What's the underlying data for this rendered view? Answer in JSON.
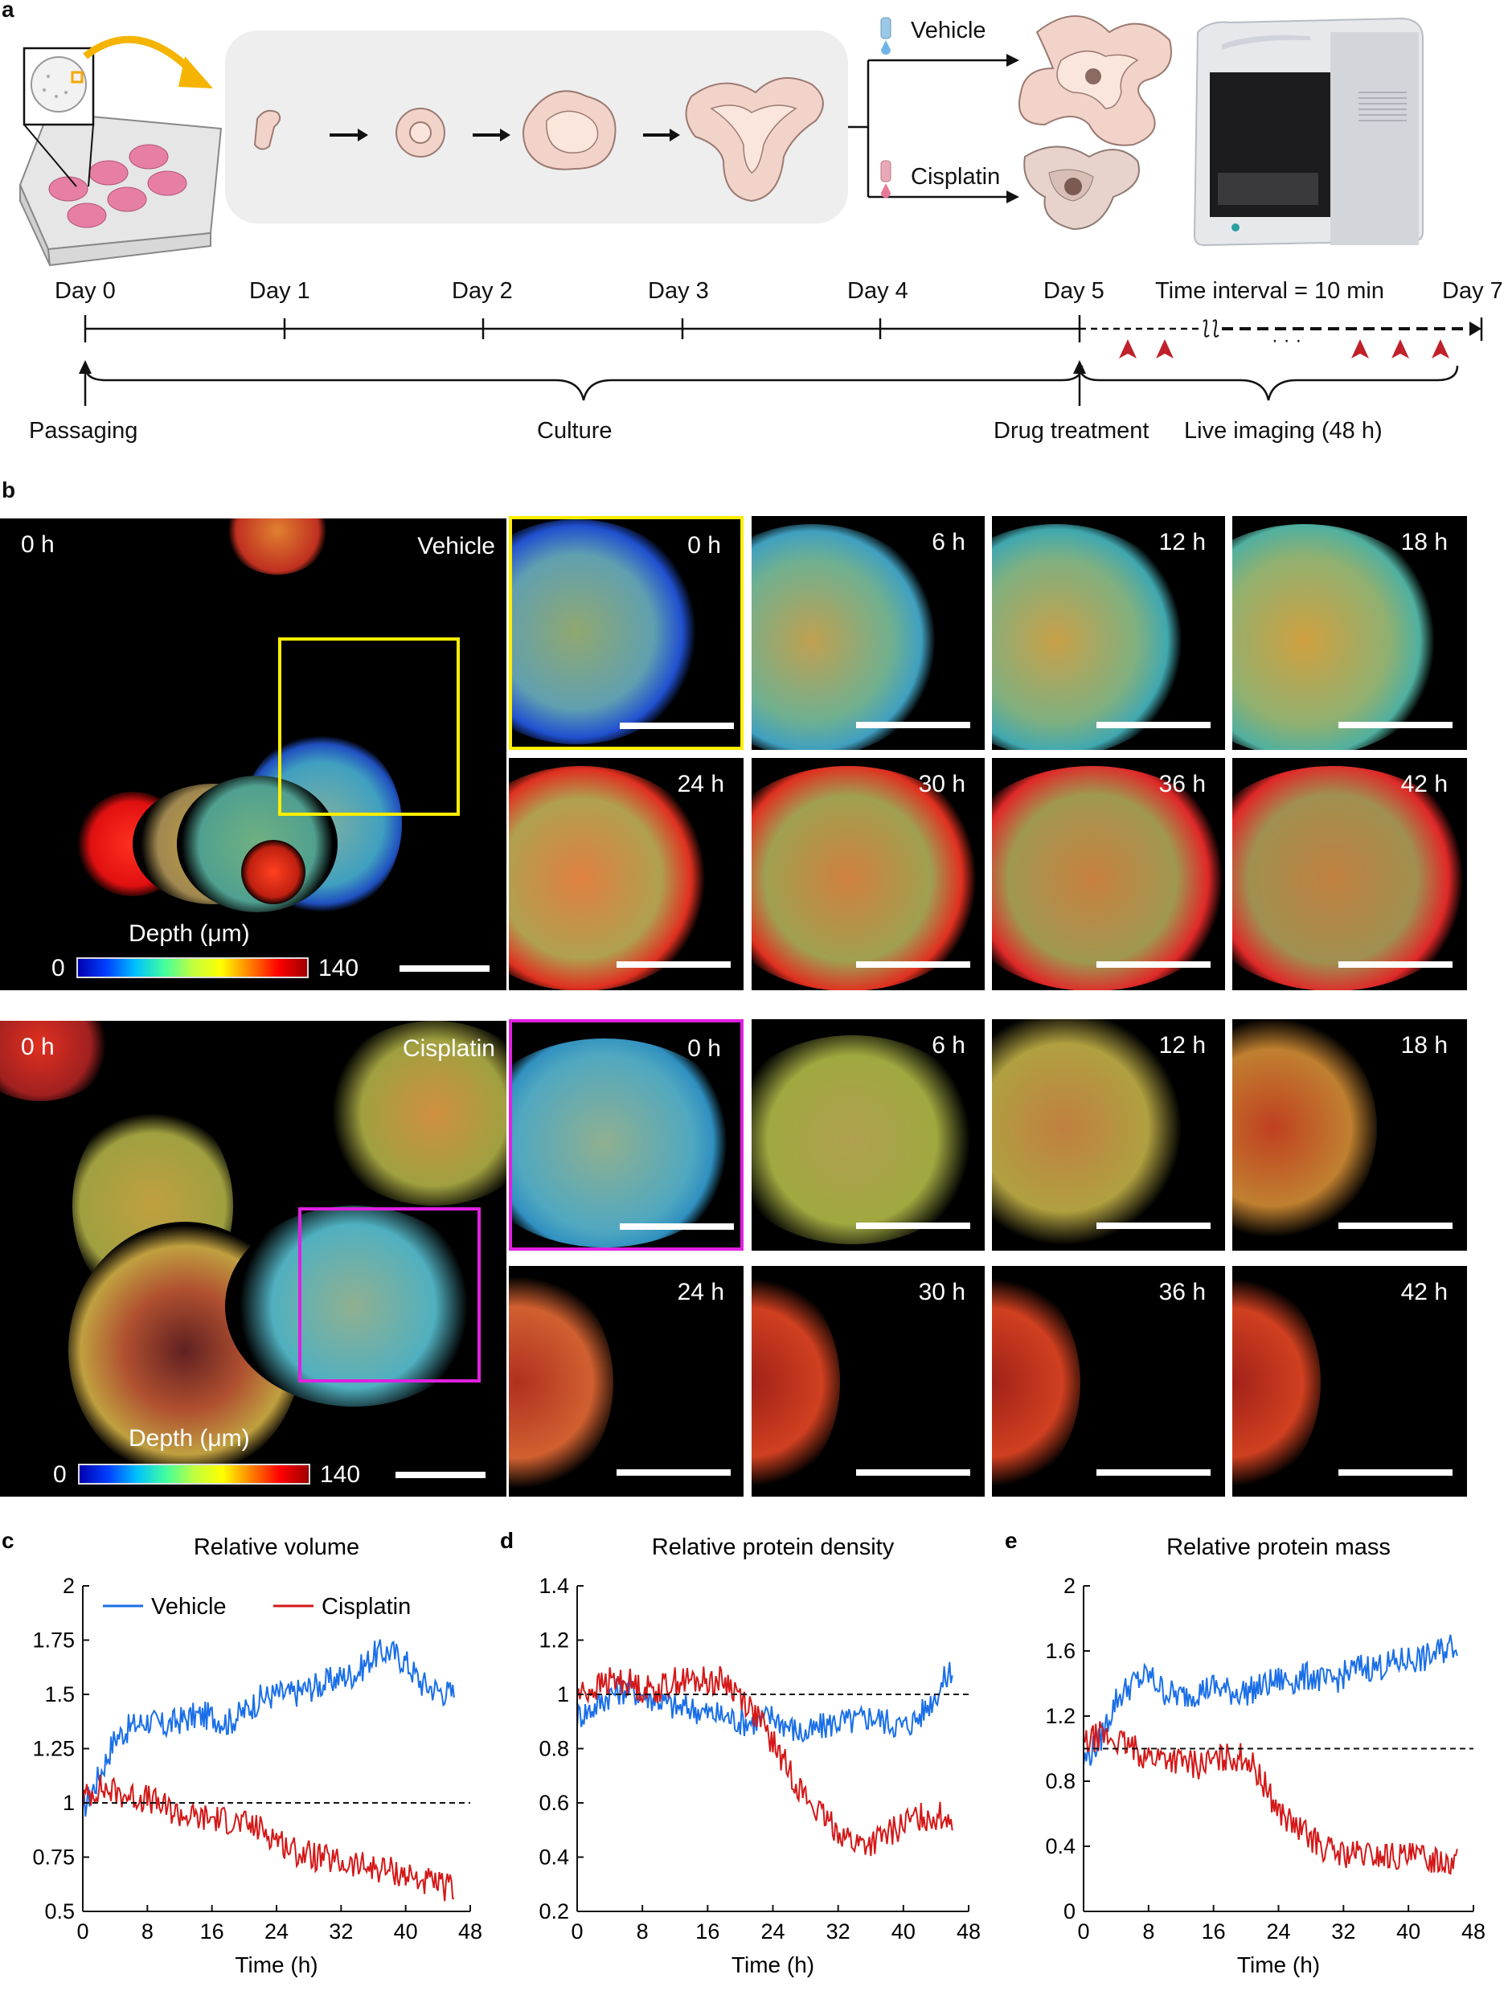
{
  "panel_a": {
    "letter": "a",
    "vehicle_label": "Vehicle",
    "cisplatin_label": "Cisplatin",
    "days": [
      "Day 0",
      "Day 1",
      "Day 2",
      "Day 3",
      "Day 4",
      "Day 5",
      "Day 7"
    ],
    "interval_label": "Time interval = 10 min",
    "ellipsis": "· · ·",
    "passaging_label": "Passaging",
    "culture_label": "Culture",
    "drug_label": "Drug treatment",
    "imaging_label": "Live imaging (48 h)"
  },
  "panel_b": {
    "letter": "b",
    "vehicle": {
      "overview_time": "0 h",
      "condition": "Vehicle",
      "depth_label": "Depth (μm)",
      "depth_min": "0",
      "depth_max": "140",
      "frames": [
        "0 h",
        "6 h",
        "12 h",
        "18 h",
        "24 h",
        "30 h",
        "36 h",
        "42 h"
      ]
    },
    "cisplatin": {
      "overview_time": "0 h",
      "condition": "Cisplatin",
      "depth_label": "Depth (μm)",
      "depth_min": "0",
      "depth_max": "140",
      "frames": [
        "0 h",
        "6 h",
        "12 h",
        "18 h",
        "24 h",
        "30 h",
        "36 h",
        "42 h"
      ]
    }
  },
  "colors": {
    "vehicle": "#1a6fe8",
    "cisplatin": "#d41818",
    "yellow_box": "#ffee00",
    "magenta_box": "#e020e0",
    "arrowhead": "#c0202a",
    "orange": "#f5b400"
  },
  "chart_data": [
    {
      "type": "line",
      "letter": "c",
      "title": "Relative volume",
      "xlabel": "Time (h)",
      "ylabel": "",
      "xlim": [
        0,
        48
      ],
      "ylim": [
        0.5,
        2
      ],
      "xticks": [
        0,
        8,
        16,
        24,
        32,
        40,
        48
      ],
      "yticks": [
        0.5,
        0.75,
        1,
        1.25,
        1.5,
        1.75,
        2
      ],
      "ytick_labels": [
        "0.5",
        "0.75",
        "1",
        "1.25",
        "1.5",
        "1.75",
        "2"
      ],
      "reference_line": 1,
      "legend": [
        "Vehicle",
        "Cisplatin"
      ],
      "series": [
        {
          "name": "Vehicle",
          "t": [
            0,
            2,
            4,
            6,
            8,
            10,
            12,
            14,
            16,
            18,
            20,
            22,
            24,
            26,
            28,
            30,
            32,
            34,
            36,
            38,
            40,
            42,
            44,
            46
          ],
          "values": [
            0.97,
            1.12,
            1.3,
            1.35,
            1.38,
            1.35,
            1.38,
            1.4,
            1.4,
            1.37,
            1.42,
            1.48,
            1.5,
            1.5,
            1.53,
            1.55,
            1.58,
            1.6,
            1.68,
            1.7,
            1.65,
            1.55,
            1.52,
            1.5
          ]
        },
        {
          "name": "Cisplatin",
          "t": [
            0,
            2,
            4,
            6,
            8,
            10,
            12,
            14,
            16,
            18,
            20,
            22,
            24,
            26,
            28,
            30,
            32,
            34,
            36,
            38,
            40,
            42,
            44,
            46
          ],
          "values": [
            1.02,
            1.07,
            1.05,
            1.03,
            1.02,
            0.98,
            0.95,
            0.93,
            0.93,
            0.92,
            0.9,
            0.88,
            0.84,
            0.78,
            0.76,
            0.74,
            0.72,
            0.71,
            0.7,
            0.69,
            0.67,
            0.64,
            0.62,
            0.6
          ]
        }
      ]
    },
    {
      "type": "line",
      "letter": "d",
      "title": "Relative protein density",
      "xlabel": "Time (h)",
      "ylabel": "",
      "xlim": [
        0,
        48
      ],
      "ylim": [
        0.2,
        1.4
      ],
      "xticks": [
        0,
        8,
        16,
        24,
        32,
        40,
        48
      ],
      "yticks": [
        0.2,
        0.4,
        0.6,
        0.8,
        1,
        1.2,
        1.4
      ],
      "ytick_labels": [
        "0.2",
        "0.4",
        "0.6",
        "0.8",
        "1",
        "1.2",
        "1.4"
      ],
      "reference_line": 1,
      "series": [
        {
          "name": "Vehicle",
          "t": [
            0,
            2,
            4,
            6,
            8,
            10,
            12,
            14,
            16,
            18,
            20,
            22,
            24,
            26,
            28,
            30,
            32,
            34,
            36,
            38,
            40,
            42,
            44,
            46
          ],
          "values": [
            0.92,
            0.95,
            1.0,
            1.02,
            1.0,
            0.98,
            0.95,
            0.95,
            0.93,
            0.92,
            0.9,
            0.9,
            0.92,
            0.88,
            0.85,
            0.88,
            0.9,
            0.9,
            0.92,
            0.9,
            0.88,
            0.92,
            1.0,
            1.1
          ]
        },
        {
          "name": "Cisplatin",
          "t": [
            0,
            2,
            4,
            6,
            8,
            10,
            12,
            14,
            16,
            18,
            20,
            22,
            24,
            26,
            28,
            30,
            32,
            34,
            36,
            38,
            40,
            42,
            44,
            46
          ],
          "values": [
            1.0,
            1.02,
            1.05,
            1.05,
            1.02,
            1.02,
            1.05,
            1.05,
            1.05,
            1.05,
            1.0,
            0.92,
            0.82,
            0.72,
            0.62,
            0.55,
            0.5,
            0.45,
            0.45,
            0.48,
            0.52,
            0.55,
            0.55,
            0.55
          ]
        }
      ]
    },
    {
      "type": "line",
      "letter": "e",
      "title": "Relative protein mass",
      "xlabel": "Time (h)",
      "ylabel": "",
      "xlim": [
        0,
        48
      ],
      "ylim": [
        0,
        2
      ],
      "xticks": [
        0,
        8,
        16,
        24,
        32,
        40,
        48
      ],
      "yticks": [
        0,
        0.4,
        0.8,
        1.2,
        1.6,
        2
      ],
      "ytick_labels": [
        "0",
        "0.4",
        "0.8",
        "1.2",
        "1.6",
        "2"
      ],
      "reference_line": 1,
      "series": [
        {
          "name": "Vehicle",
          "t": [
            0,
            2,
            4,
            6,
            8,
            10,
            12,
            14,
            16,
            18,
            20,
            22,
            24,
            26,
            28,
            30,
            32,
            34,
            36,
            38,
            40,
            42,
            44,
            46
          ],
          "values": [
            0.92,
            1.05,
            1.3,
            1.4,
            1.45,
            1.35,
            1.32,
            1.35,
            1.38,
            1.35,
            1.35,
            1.38,
            1.42,
            1.42,
            1.45,
            1.4,
            1.45,
            1.5,
            1.5,
            1.52,
            1.55,
            1.55,
            1.6,
            1.65
          ]
        },
        {
          "name": "Cisplatin",
          "t": [
            0,
            2,
            4,
            6,
            8,
            10,
            12,
            14,
            16,
            18,
            20,
            22,
            24,
            26,
            28,
            30,
            32,
            34,
            36,
            38,
            40,
            42,
            44,
            46
          ],
          "values": [
            1.02,
            1.08,
            1.05,
            1.0,
            0.95,
            0.95,
            0.92,
            0.9,
            0.92,
            0.95,
            0.95,
            0.8,
            0.62,
            0.52,
            0.45,
            0.38,
            0.35,
            0.35,
            0.34,
            0.34,
            0.33,
            0.33,
            0.32,
            0.32
          ]
        }
      ]
    }
  ]
}
